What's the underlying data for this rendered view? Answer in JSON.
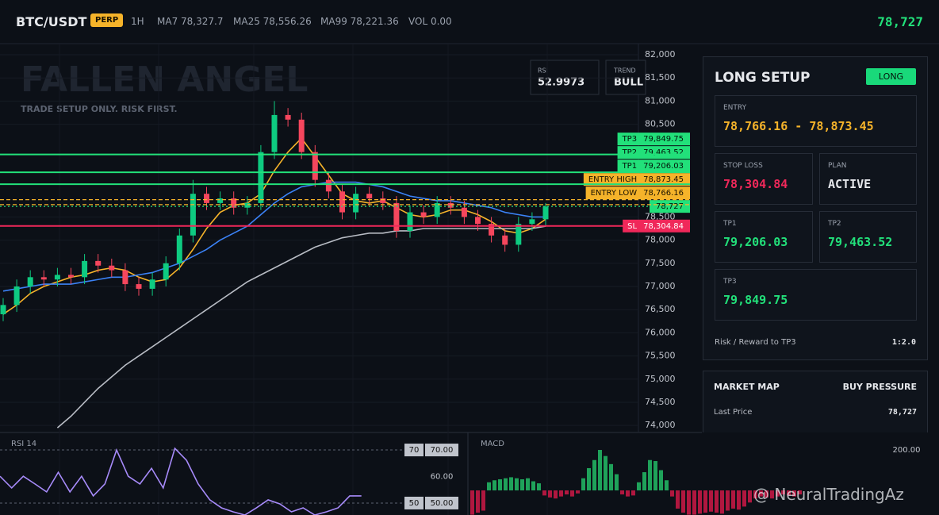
{
  "header": {
    "symbol": "BTC/USDT",
    "badge": "PERP",
    "interval": "1H",
    "ma7": "MA7 78,327.7",
    "ma25": "MA25 78,556.26",
    "ma99": "MA99 78,221.36",
    "volume": "VOL 0.00",
    "last_price": "78,727"
  },
  "overlay": {
    "title": "FALLEN ANGEL",
    "subtitle": "TRADE SETUP ONLY. RISK FIRST.",
    "rsi_label": "RSI",
    "rsi_value": "52.9973",
    "trend_label": "TREND",
    "trend_value": "BULL"
  },
  "price_chart": {
    "ylim": [
      73849,
      82240
    ],
    "yticks": [
      {
        "value": 82000,
        "label": "82,000"
      },
      {
        "value": 81500,
        "label": "81,500"
      },
      {
        "value": 81000,
        "label": "81,000"
      },
      {
        "value": 80500,
        "label": "80,500"
      },
      {
        "value": 78500,
        "label": "78,500"
      },
      {
        "value": 78000,
        "label": "78,000"
      },
      {
        "value": 77500,
        "label": "77,500"
      },
      {
        "value": 77000,
        "label": "77,000"
      },
      {
        "value": 76500,
        "label": "76,500"
      },
      {
        "value": 76000,
        "label": "76,000"
      },
      {
        "value": 75500,
        "label": "75,500"
      },
      {
        "value": 75000,
        "label": "75,000"
      },
      {
        "value": 74500,
        "label": "74,500"
      },
      {
        "value": 74000,
        "label": "74,000"
      }
    ],
    "candles": {
      "up_color": "#0ecb81",
      "down_color": "#f6465d",
      "open": [
        76400,
        76600,
        77000,
        77200,
        77150,
        77250,
        77200,
        77550,
        77450,
        77350,
        77050,
        76950,
        77150,
        77500,
        78100,
        79000,
        78800,
        78900,
        78700,
        78800,
        79900,
        80700,
        80600,
        79900,
        79300,
        79050,
        78600,
        79000,
        78900,
        78800,
        78200,
        78600,
        78500,
        78800,
        78700,
        78500,
        78350,
        78100,
        77900,
        78350,
        78450
      ],
      "high": [
        76750,
        77150,
        77350,
        77350,
        77400,
        77400,
        77700,
        77700,
        77600,
        77500,
        77200,
        77300,
        77650,
        78250,
        79300,
        79150,
        79050,
        79050,
        78950,
        80050,
        81000,
        80850,
        80750,
        80050,
        79450,
        79200,
        79150,
        79150,
        79050,
        78950,
        78750,
        78750,
        78950,
        78950,
        78850,
        78650,
        78500,
        78250,
        78500,
        78600,
        78800
      ],
      "low": [
        76250,
        76450,
        76850,
        77000,
        77000,
        77050,
        77050,
        77300,
        77200,
        76900,
        76800,
        76800,
        77000,
        77350,
        77950,
        78650,
        78650,
        78550,
        78550,
        78650,
        79750,
        80450,
        79750,
        79150,
        78900,
        78450,
        78450,
        78750,
        78650,
        78050,
        78050,
        78350,
        78350,
        78550,
        78350,
        78200,
        77950,
        77750,
        77750,
        78200,
        78300
      ],
      "close": [
        76600,
        77000,
        77200,
        77150,
        77250,
        77200,
        77550,
        77450,
        77350,
        77050,
        76950,
        77150,
        77500,
        78100,
        79000,
        78800,
        78900,
        78700,
        78800,
        79900,
        80700,
        80600,
        79900,
        79300,
        79050,
        78600,
        79000,
        78900,
        78800,
        78200,
        78600,
        78500,
        78800,
        78700,
        78500,
        78350,
        78100,
        77900,
        78350,
        78450,
        78727
      ]
    },
    "moving_averages": [
      {
        "color": "#f5b32a",
        "values": [
          76400,
          76600,
          76850,
          77000,
          77100,
          77200,
          77250,
          77350,
          77400,
          77350,
          77200,
          77100,
          77150,
          77400,
          77800,
          78250,
          78600,
          78750,
          78800,
          79000,
          79500,
          79900,
          80200,
          79800,
          79400,
          79000,
          78850,
          78800,
          78850,
          78700,
          78550,
          78500,
          78550,
          78650,
          78650,
          78550,
          78400,
          78200,
          78150,
          78250,
          78450
        ]
      },
      {
        "color": "#3b82f6",
        "values": [
          76900,
          76950,
          77000,
          77050,
          77050,
          77050,
          77100,
          77150,
          77200,
          77200,
          77250,
          77300,
          77400,
          77500,
          77650,
          77800,
          78000,
          78150,
          78300,
          78550,
          78800,
          79000,
          79150,
          79200,
          79250,
          79250,
          79250,
          79200,
          79150,
          79050,
          78950,
          78900,
          78850,
          78850,
          78800,
          78750,
          78700,
          78600,
          78550,
          78500,
          78500
        ]
      },
      {
        "color": "#b8bcc4",
        "values": [
          null,
          null,
          null,
          null,
          73950,
          74200,
          74500,
          74800,
          75050,
          75300,
          75500,
          75700,
          75900,
          76100,
          76300,
          76500,
          76700,
          76900,
          77100,
          77250,
          77400,
          77550,
          77700,
          77850,
          77950,
          78050,
          78100,
          78150,
          78150,
          78200,
          78200,
          78250,
          78250,
          78250,
          78250,
          78250,
          78250,
          78250,
          78250,
          78250,
          78300
        ]
      }
    ],
    "levels": [
      {
        "label": "TP3",
        "value": 79849.75,
        "value_label": "79,849.75",
        "color": "#22e07a",
        "text_color": "#04140a",
        "style": "solid"
      },
      {
        "label": "TP2",
        "value": 79463.52,
        "value_label": "79,463.52",
        "color": "#22e07a",
        "text_color": "#04140a",
        "style": "solid"
      },
      {
        "label": "TP1",
        "value": 79206.03,
        "value_label": "79,206.03",
        "color": "#22e07a",
        "text_color": "#04140a",
        "style": "solid"
      },
      {
        "label": "ENTRY HIGH",
        "value": 78873.45,
        "value_label": "78,873.45",
        "color": "#f5b32a",
        "text_color": "#1a1200",
        "style": "dashed"
      },
      {
        "label": "ENTRY LOW",
        "value": 78766.16,
        "value_label": "78,766.16",
        "color": "#f5b32a",
        "text_color": "#1a1200",
        "style": "dashed"
      },
      {
        "value": 78727,
        "value_label": "78,727",
        "color": "#22e07a",
        "text_color": "#04140a",
        "style": "dotted"
      },
      {
        "label": "SL",
        "value": 78304.84,
        "value_label": "78,304.84",
        "color": "#f0285a",
        "text_color": "#ffffff",
        "style": "solid"
      }
    ]
  },
  "rsi_panel": {
    "title": "RSI 14",
    "ylim": [
      45.5,
      75.1
    ],
    "color": "#a78bfa",
    "yticks": [
      {
        "value": 70,
        "label": "70.00"
      },
      {
        "value": 60,
        "label": "60.00"
      },
      {
        "value": 50,
        "label": "50.00"
      }
    ],
    "levels": [
      {
        "value": 70,
        "label": "70"
      },
      {
        "value": 50,
        "label": "50"
      }
    ],
    "values": [
      60.1,
      55.7,
      60.1,
      57.2,
      54.2,
      61.6,
      54.2,
      60.1,
      52.7,
      57.2,
      70,
      60.1,
      57.2,
      63.1,
      55.7,
      70.6,
      66.1,
      57.2,
      51.2,
      48.2,
      46.7,
      45.5,
      48.2,
      51.2,
      49.7,
      46.7,
      48.2,
      45.5,
      46.7,
      48.2,
      52.7,
      52.7
    ]
  },
  "macd_panel": {
    "title": "MACD",
    "ylim": [
      -121.6,
      266.7
    ],
    "yticks": [
      {
        "value": 200,
        "label": "200.00"
      }
    ],
    "up_color": "#1fa25a",
    "down_color": "#b0173f",
    "values": [
      -120,
      -110,
      -100,
      40,
      50,
      55,
      60,
      65,
      60,
      55,
      60,
      45,
      35,
      -25,
      -35,
      -40,
      -30,
      -20,
      -30,
      -15,
      60,
      110,
      150,
      200,
      170,
      130,
      80,
      -20,
      -30,
      -25,
      40,
      90,
      150,
      145,
      100,
      50,
      -30,
      -90,
      -110,
      -120,
      -120,
      -115,
      -110,
      -105,
      -110,
      -115,
      -100,
      -90,
      -95,
      -80,
      -60,
      -40,
      -30,
      -35,
      -40,
      -30,
      -20,
      -25,
      -30,
      -20
    ]
  },
  "setup_panel": {
    "title": "LONG SETUP",
    "badge": "LONG",
    "entry_label": "ENTRY",
    "entry_value": "78,766.16 - 78,873.45",
    "stop_label": "STOP LOSS",
    "stop_value": "78,304.84",
    "plan_label": "PLAN",
    "plan_value": "ACTIVE",
    "tp1_label": "TP1",
    "tp1_value": "79,206.03",
    "tp2_label": "TP2",
    "tp2_value": "79,463.52",
    "tp3_label": "TP3",
    "tp3_value": "79,849.75",
    "rr_label": "Risk / Reward to TP3",
    "rr_value": "1:2.0"
  },
  "market_map": {
    "title": "MARKET MAP",
    "status": "BUY PRESSURE",
    "last_price_label": "Last Price",
    "last_price_value": "78,727"
  },
  "watermark": "@ NeuralTradingAz"
}
